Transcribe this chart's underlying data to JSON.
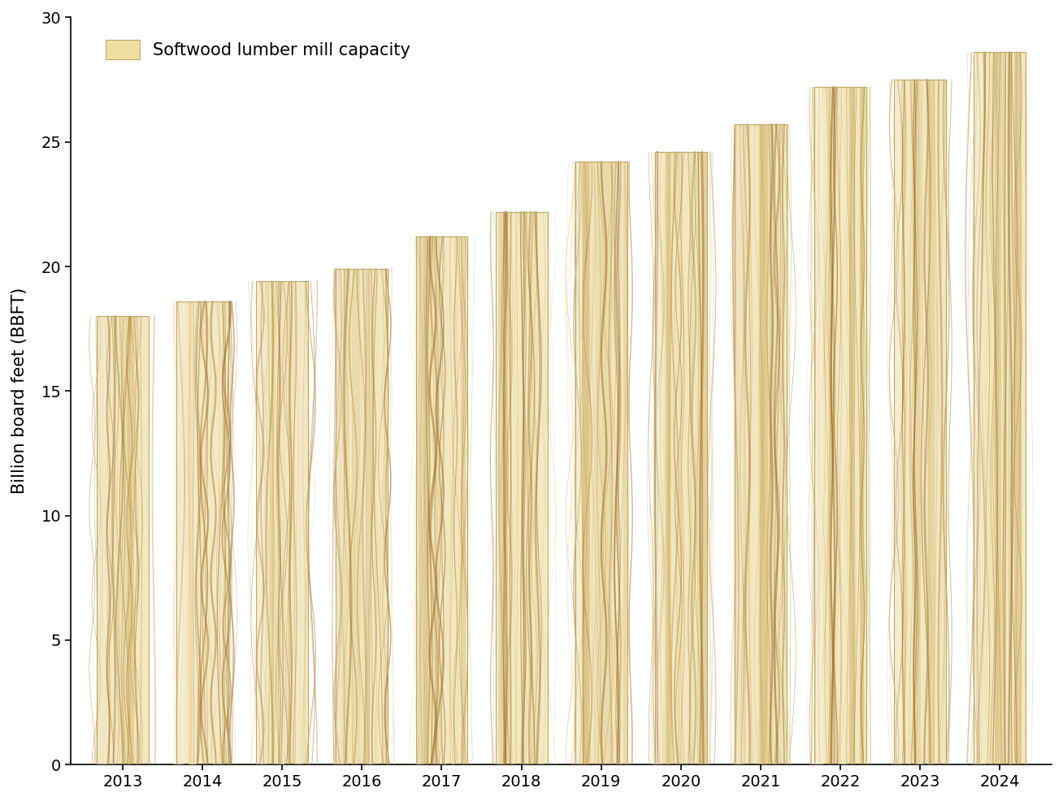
{
  "years": [
    2013,
    2014,
    2015,
    2016,
    2017,
    2018,
    2019,
    2020,
    2021,
    2022,
    2023,
    2024
  ],
  "values": [
    18.0,
    18.6,
    19.4,
    19.9,
    21.2,
    22.2,
    24.2,
    24.6,
    25.7,
    27.2,
    27.5,
    28.6
  ],
  "bar_base_color": "#F0E0A0",
  "grain_dark_color": "#C8A060",
  "grain_medium_color": "#D4B878",
  "grain_light_color": "#F8F0CC",
  "bar_edge_color": "#C0A868",
  "legend_label": "Softwood lumber mill capacity",
  "ylabel": "Billion board feet (BBFT)",
  "ylim": [
    0,
    30
  ],
  "yticks": [
    0,
    5,
    10,
    15,
    20,
    25,
    30
  ],
  "background_color": "#FFFFFF",
  "bar_width": 0.65
}
